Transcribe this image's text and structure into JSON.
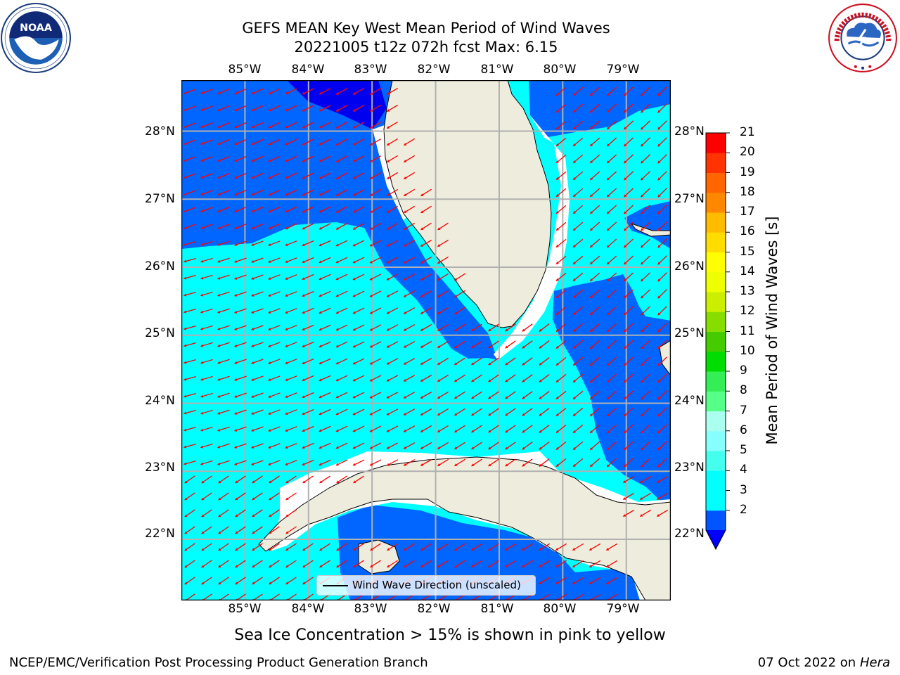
{
  "title": {
    "line1": "GEFS MEAN Key West Mean Period of Wind Waves",
    "line2": "20221005 t12z 072h fcst   Max: 6.15"
  },
  "logos": {
    "left": "NOAA",
    "right": "NATIONAL WEATHER SERVICE"
  },
  "map": {
    "projection": "PlateCarree",
    "lon_range": [
      -86.0,
      -78.3
    ],
    "lat_range": [
      21.1,
      28.75
    ],
    "lon_ticks": [
      "85°W",
      "84°W",
      "83°W",
      "82°W",
      "81°W",
      "80°W",
      "79°W"
    ],
    "lat_ticks": [
      "28°N",
      "27°N",
      "26°N",
      "25°N",
      "24°N",
      "23°N",
      "22°N"
    ],
    "grid": true,
    "arrow_color": "#ff0000",
    "land_color": "#eeeddd",
    "coast_color": "#000000",
    "legend": "Wind Wave Direction (unscaled)"
  },
  "colorbar": {
    "label": "Mean Period of Wind Waves [s]",
    "ticks": [
      "21",
      "20",
      "19",
      "18",
      "17",
      "16",
      "15",
      "14",
      "13",
      "12",
      "11",
      "10",
      "9",
      "8",
      "7",
      "6",
      "5",
      "4",
      "3",
      "2"
    ],
    "bins": [
      2,
      3,
      4,
      5,
      6,
      7,
      8,
      9,
      10,
      11,
      12,
      13,
      14,
      15,
      16,
      17,
      18,
      19,
      20,
      21
    ],
    "colors": [
      "#0055ff",
      "#00ffff",
      "#00ffff",
      "#44ffee",
      "#88ffff",
      "#aaffee",
      "#55ff88",
      "#33ee55",
      "#00dd00",
      "#44cc00",
      "#88dd00",
      "#ccee00",
      "#eeff00",
      "#ffff00",
      "#ffdd00",
      "#ffbb00",
      "#ff8800",
      "#ff6600",
      "#ff3300",
      "#ff0000"
    ],
    "under_color": "#0000ff"
  },
  "note": "Sea Ice Concentration > 15% is shown in pink to yellow",
  "footer": {
    "left": "NCEP/EMC/Verification Post Processing Product Generation Branch",
    "right_date": "07 Oct 2022 on ",
    "right_host": "Hera"
  }
}
